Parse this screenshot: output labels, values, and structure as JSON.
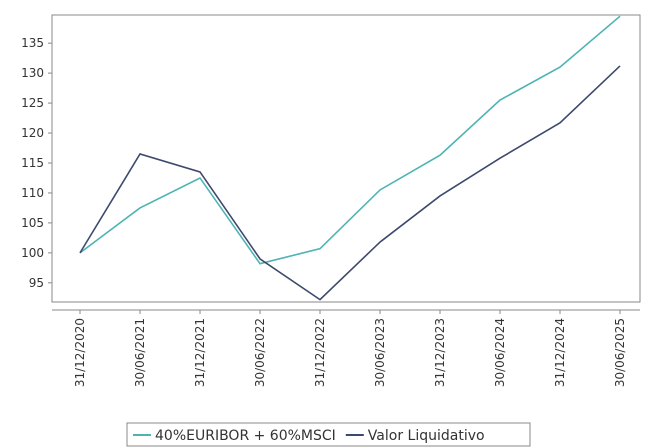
{
  "chart_data": {
    "type": "line",
    "categories": [
      "31/12/2020",
      "30/06/2021",
      "31/12/2021",
      "30/06/2022",
      "31/12/2022",
      "30/06/2023",
      "31/12/2023",
      "30/06/2024",
      "31/12/2024",
      "30/06/2025"
    ],
    "series": [
      {
        "name": "40%EURIBOR + 60%MSCI",
        "color": "#4db3b3",
        "values": [
          100,
          107.5,
          112.5,
          98.2,
          100.7,
          110.5,
          116.3,
          125.5,
          131,
          139.5
        ]
      },
      {
        "name": "Valor Liquidativo",
        "color": "#3e4a6d",
        "values": [
          100,
          116.5,
          113.5,
          99,
          92.2,
          101.8,
          109.5,
          115.8,
          121.7,
          131.2
        ]
      }
    ],
    "ylim": [
      91.8,
      139.7
    ],
    "yticks": [
      95,
      100,
      105,
      110,
      115,
      120,
      125,
      130,
      135
    ],
    "legend": "bottom"
  }
}
